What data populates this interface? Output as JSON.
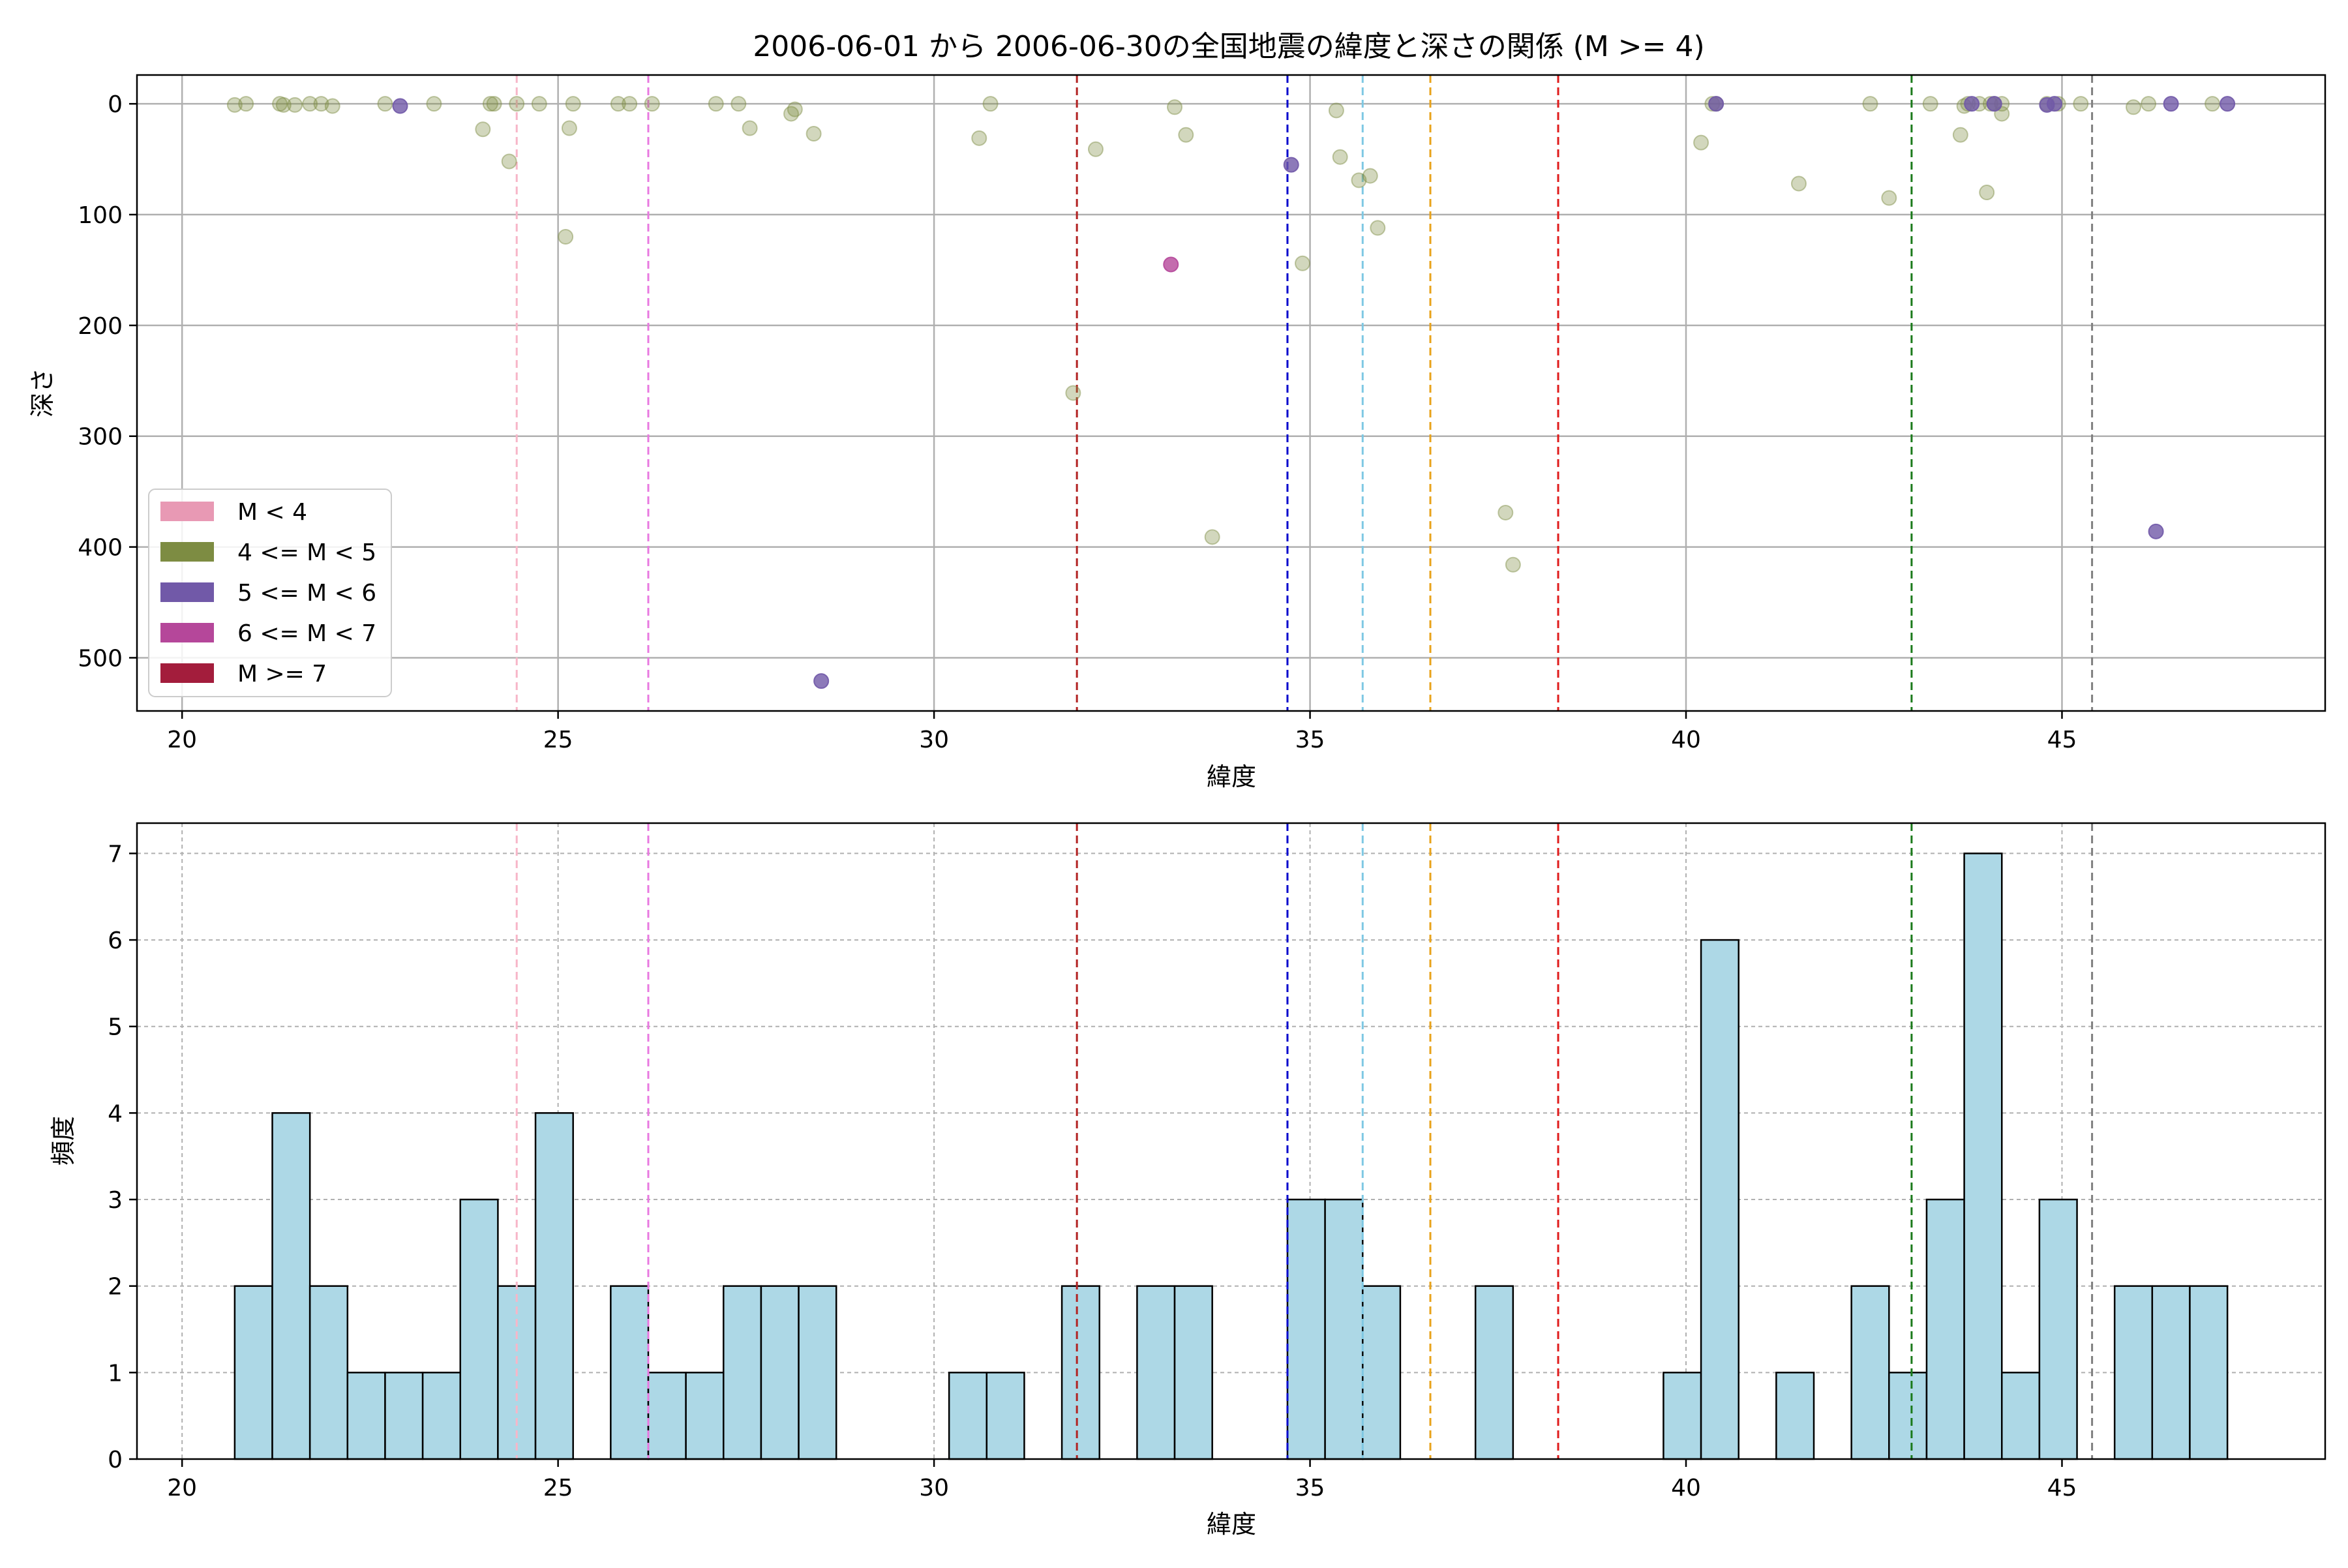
{
  "chart_data": [
    {
      "type": "scatter",
      "title": "2006-06-01 から 2006-06-30の全国地震の緯度と深さの関係 (M >= 4)",
      "xlabel": "緯度",
      "ylabel": "深さ",
      "xlim": [
        19.4,
        48.5
      ],
      "ylim": [
        548,
        -26
      ],
      "y_inverted": true,
      "xticks": [
        20,
        25,
        30,
        35,
        40,
        45
      ],
      "yticks": [
        0,
        100,
        200,
        300,
        400,
        500
      ],
      "grid": true,
      "legend_position": "lower-left",
      "legend": [
        {
          "label": "M < 4",
          "color": "#e899b4"
        },
        {
          "label": "4 <= M < 5",
          "color": "#7d8c42"
        },
        {
          "label": "5 <= M < 6",
          "color": "#7159a8"
        },
        {
          "label": "6 <= M < 7",
          "color": "#b5479a"
        },
        {
          "label": "M >= 7",
          "color": "#a31d3c"
        }
      ],
      "reference_lines": [
        {
          "x": 24.45,
          "color": "#f7b6c8"
        },
        {
          "x": 26.2,
          "color": "#e879e0"
        },
        {
          "x": 31.9,
          "color": "#b22222"
        },
        {
          "x": 34.7,
          "color": "#0000cc"
        },
        {
          "x": 35.7,
          "color": "#7ec8e3"
        },
        {
          "x": 36.6,
          "color": "#e8a21a"
        },
        {
          "x": 38.3,
          "color": "#e01b1b"
        },
        {
          "x": 43.0,
          "color": "#1a7a1a"
        },
        {
          "x": 45.4,
          "color": "#808080"
        }
      ],
      "series": [
        {
          "name": "4 <= M < 5",
          "color": "#7d8c42",
          "points": [
            [
              20.7,
              1
            ],
            [
              20.85,
              0
            ],
            [
              21.3,
              0
            ],
            [
              21.35,
              1
            ],
            [
              21.5,
              1
            ],
            [
              21.7,
              0
            ],
            [
              21.85,
              0
            ],
            [
              22.0,
              2
            ],
            [
              22.7,
              0
            ],
            [
              23.35,
              0
            ],
            [
              24.0,
              23
            ],
            [
              24.1,
              0
            ],
            [
              24.15,
              0
            ],
            [
              24.35,
              52
            ],
            [
              24.45,
              0
            ],
            [
              24.75,
              0
            ],
            [
              25.1,
              120
            ],
            [
              25.15,
              22
            ],
            [
              25.2,
              0
            ],
            [
              25.8,
              0
            ],
            [
              25.95,
              0
            ],
            [
              26.25,
              0
            ],
            [
              27.1,
              0
            ],
            [
              27.4,
              0
            ],
            [
              27.55,
              22
            ],
            [
              28.1,
              9
            ],
            [
              28.15,
              5
            ],
            [
              28.4,
              27
            ],
            [
              30.6,
              31
            ],
            [
              30.75,
              0
            ],
            [
              31.85,
              261
            ],
            [
              32.15,
              41
            ],
            [
              33.2,
              3
            ],
            [
              33.35,
              28
            ],
            [
              33.7,
              391
            ],
            [
              34.9,
              144
            ],
            [
              35.35,
              6
            ],
            [
              35.4,
              48
            ],
            [
              35.65,
              69
            ],
            [
              35.8,
              65
            ],
            [
              35.9,
              112
            ],
            [
              37.6,
              369
            ],
            [
              37.7,
              416
            ],
            [
              40.2,
              35
            ],
            [
              40.35,
              0
            ],
            [
              40.4,
              0
            ],
            [
              41.5,
              72
            ],
            [
              42.45,
              0
            ],
            [
              42.7,
              85
            ],
            [
              43.25,
              0
            ],
            [
              43.65,
              28
            ],
            [
              43.7,
              2
            ],
            [
              43.75,
              0
            ],
            [
              43.9,
              0
            ],
            [
              44.0,
              80
            ],
            [
              44.05,
              0
            ],
            [
              44.1,
              0
            ],
            [
              44.2,
              9
            ],
            [
              44.2,
              0
            ],
            [
              44.8,
              0
            ],
            [
              44.95,
              0
            ],
            [
              45.25,
              0
            ],
            [
              45.95,
              3
            ],
            [
              46.15,
              0
            ],
            [
              47.0,
              0
            ]
          ]
        },
        {
          "name": "5 <= M < 6",
          "color": "#7159a8",
          "points": [
            [
              22.9,
              2
            ],
            [
              28.5,
              521
            ],
            [
              34.75,
              55
            ],
            [
              40.4,
              0
            ],
            [
              43.8,
              0
            ],
            [
              44.1,
              0
            ],
            [
              44.8,
              1
            ],
            [
              44.9,
              0
            ],
            [
              46.25,
              386
            ],
            [
              46.45,
              0
            ],
            [
              47.2,
              0
            ]
          ]
        },
        {
          "name": "6 <= M < 7",
          "color": "#b5479a",
          "points": [
            [
              33.15,
              145
            ]
          ]
        }
      ]
    },
    {
      "type": "bar",
      "xlabel": "緯度",
      "ylabel": "頻度",
      "xlim": [
        19.4,
        48.5
      ],
      "ylim": [
        0,
        7.35
      ],
      "xticks": [
        20,
        25,
        30,
        35,
        40,
        45
      ],
      "yticks": [
        0,
        1,
        2,
        3,
        4,
        5,
        6,
        7
      ],
      "grid": true,
      "bar_color": "#add8e6",
      "bar_edge_color": "#000000",
      "bin_width": 0.5,
      "bins": [
        {
          "x": 20.7,
          "count": 2
        },
        {
          "x": 21.2,
          "count": 4
        },
        {
          "x": 21.7,
          "count": 2
        },
        {
          "x": 22.2,
          "count": 1
        },
        {
          "x": 22.7,
          "count": 1
        },
        {
          "x": 23.2,
          "count": 1
        },
        {
          "x": 23.7,
          "count": 3
        },
        {
          "x": 24.2,
          "count": 2
        },
        {
          "x": 24.7,
          "count": 4
        },
        {
          "x": 25.7,
          "count": 2
        },
        {
          "x": 26.2,
          "count": 1
        },
        {
          "x": 26.7,
          "count": 1
        },
        {
          "x": 27.2,
          "count": 2
        },
        {
          "x": 27.7,
          "count": 2
        },
        {
          "x": 28.2,
          "count": 2
        },
        {
          "x": 30.2,
          "count": 1
        },
        {
          "x": 30.7,
          "count": 1
        },
        {
          "x": 31.7,
          "count": 2
        },
        {
          "x": 32.7,
          "count": 2
        },
        {
          "x": 33.2,
          "count": 2
        },
        {
          "x": 34.7,
          "count": 3
        },
        {
          "x": 35.2,
          "count": 3
        },
        {
          "x": 35.7,
          "count": 2
        },
        {
          "x": 37.2,
          "count": 2
        },
        {
          "x": 39.7,
          "count": 1
        },
        {
          "x": 40.2,
          "count": 6
        },
        {
          "x": 41.2,
          "count": 1
        },
        {
          "x": 42.2,
          "count": 2
        },
        {
          "x": 42.7,
          "count": 1
        },
        {
          "x": 43.2,
          "count": 3
        },
        {
          "x": 43.7,
          "count": 7
        },
        {
          "x": 44.2,
          "count": 1
        },
        {
          "x": 44.7,
          "count": 3
        },
        {
          "x": 45.7,
          "count": 2
        },
        {
          "x": 46.2,
          "count": 2
        },
        {
          "x": 46.7,
          "count": 2
        }
      ],
      "reference_lines": [
        {
          "x": 24.45,
          "color": "#f7b6c8"
        },
        {
          "x": 26.2,
          "color": "#e879e0"
        },
        {
          "x": 31.9,
          "color": "#b22222"
        },
        {
          "x": 34.7,
          "color": "#0000cc"
        },
        {
          "x": 35.7,
          "color": "#7ec8e3"
        },
        {
          "x": 36.6,
          "color": "#e8a21a"
        },
        {
          "x": 38.3,
          "color": "#e01b1b"
        },
        {
          "x": 43.0,
          "color": "#1a7a1a"
        },
        {
          "x": 45.4,
          "color": "#808080"
        }
      ]
    }
  ]
}
